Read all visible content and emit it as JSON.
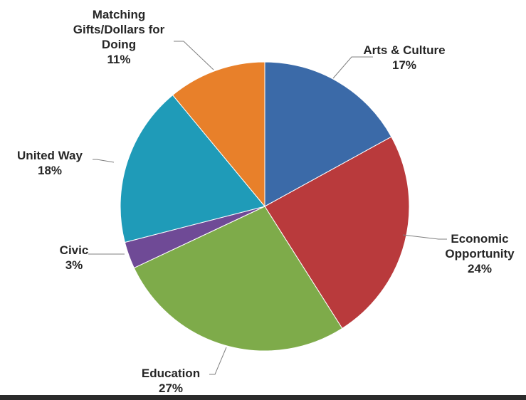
{
  "chart_data": {
    "type": "pie",
    "title": "",
    "slices": [
      {
        "label": "Arts & Culture",
        "lines": [
          "Arts & Culture"
        ],
        "percent_label": "17%",
        "value": 17,
        "color": "#3b6aa8"
      },
      {
        "label": "Economic Opportunity",
        "lines": [
          "Economic",
          "Opportunity"
        ],
        "percent_label": "24%",
        "value": 24,
        "color": "#b93a3c"
      },
      {
        "label": "Education",
        "lines": [
          "Education"
        ],
        "percent_label": "27%",
        "value": 27,
        "color": "#7eab4a"
      },
      {
        "label": "Civic",
        "lines": [
          "Civic"
        ],
        "percent_label": "3%",
        "value": 3,
        "color": "#6f4a96"
      },
      {
        "label": "United Way",
        "lines": [
          "United Way"
        ],
        "percent_label": "18%",
        "value": 18,
        "color": "#1f9bb8"
      },
      {
        "label": "Matching Gifts/Dollars for Doing",
        "lines": [
          "Matching",
          "Gifts/Dollars for",
          "Doing"
        ],
        "percent_label": "11%",
        "value": 11,
        "color": "#e8802a"
      }
    ],
    "legend": "none",
    "labels": "outside with leader lines"
  }
}
